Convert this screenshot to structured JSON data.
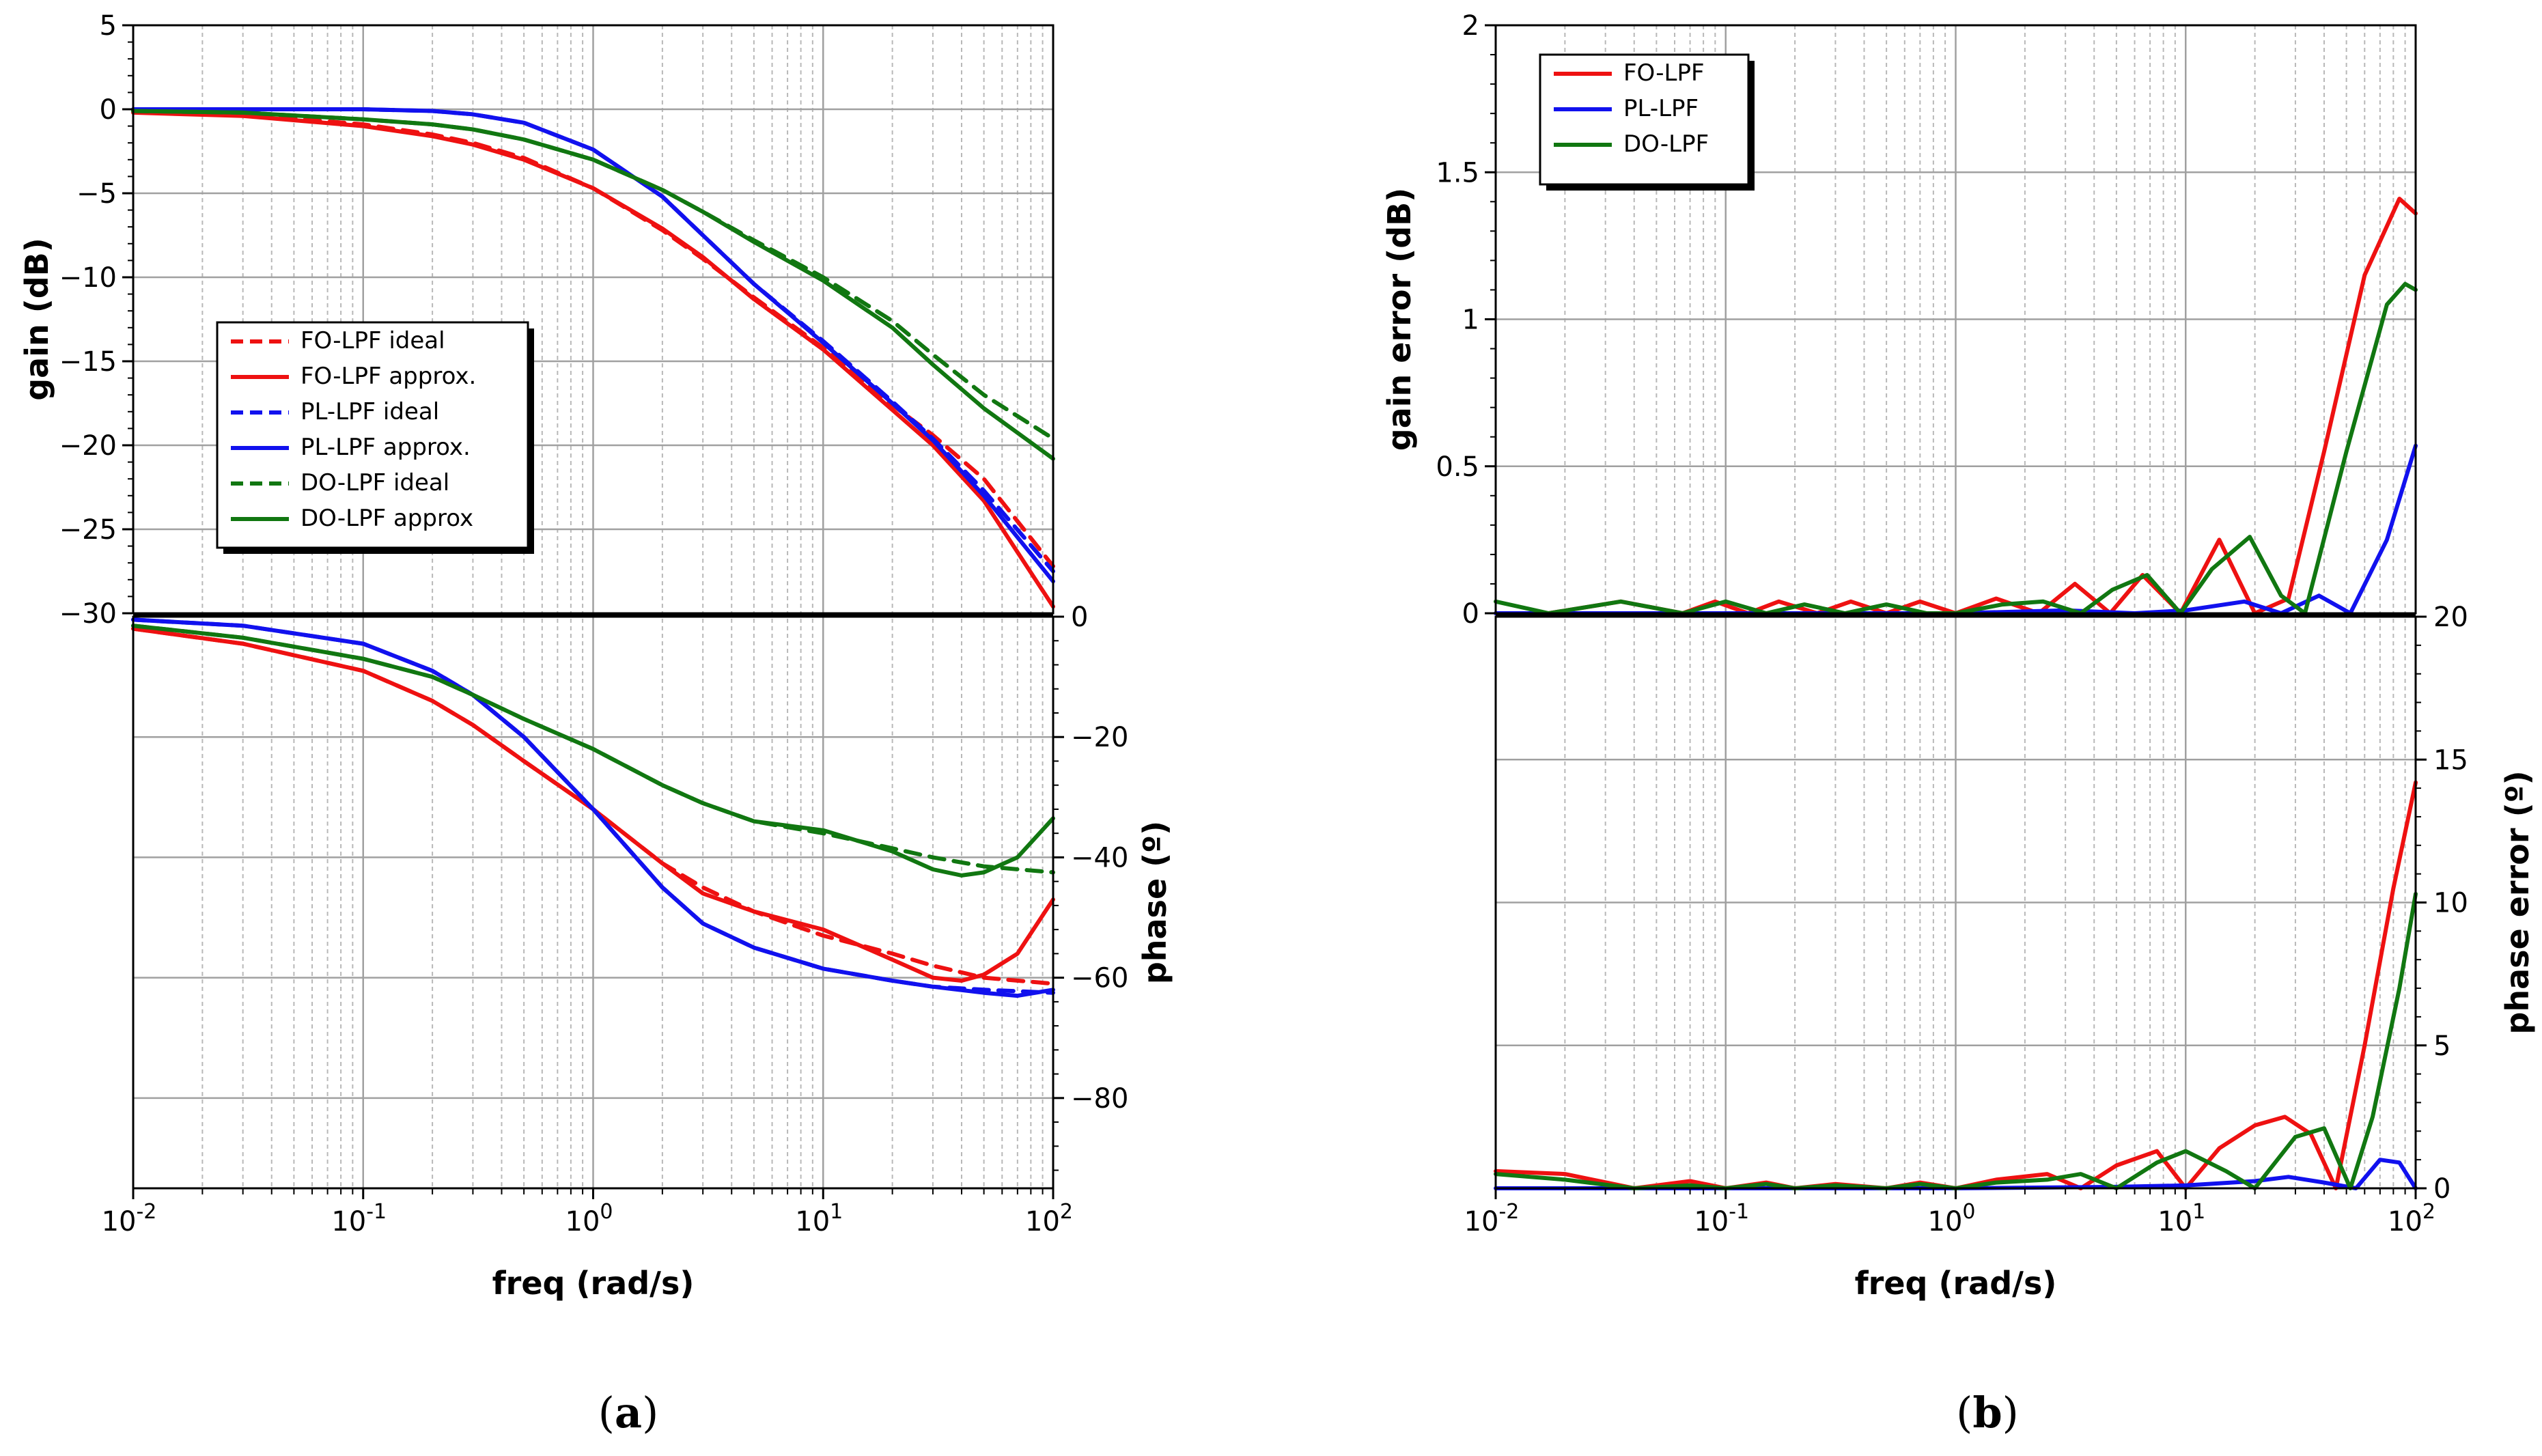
{
  "chart_data": [
    {
      "id": "a",
      "type": "line",
      "caption_letter": "a",
      "xlabel": "freq (rad/s)",
      "x_scale": "log",
      "xlim": [
        0.01,
        100
      ],
      "x_tick_exponents": [
        "-2",
        "-1",
        "0",
        "1",
        "2"
      ],
      "x_tick_base": "10",
      "gain_ylabel": "gain (dB)",
      "gain_ylim": [
        -30,
        5
      ],
      "gain_ticks": [
        "5",
        "0",
        "−5",
        "−10",
        "−15",
        "−20",
        "−25",
        "−30"
      ],
      "gain_tick_values": [
        5,
        0,
        -5,
        -10,
        -15,
        -20,
        -25,
        -30
      ],
      "phase_ylabel": "phase (º)",
      "phase_ylim": [
        -95,
        0
      ],
      "phase_ticks": [
        "0",
        "−20",
        "−40",
        "−60",
        "−80"
      ],
      "phase_tick_values": [
        0,
        -20,
        -40,
        -60,
        -80
      ],
      "legend_position": "middle-left of gain panel",
      "legend": [
        {
          "label": "FO-LPF ideal",
          "color": "#ee1111",
          "dash": true
        },
        {
          "label": "FO-LPF approx.",
          "color": "#ee1111",
          "dash": false
        },
        {
          "label": "PL-LPF ideal",
          "color": "#1111ee",
          "dash": true
        },
        {
          "label": "PL-LPF approx.",
          "color": "#1111ee",
          "dash": false
        },
        {
          "label": "DO-LPF ideal",
          "color": "#117711",
          "dash": true
        },
        {
          "label": "DO-LPF approx",
          "color": "#117711",
          "dash": false
        }
      ],
      "gain_series": [
        {
          "name": "FO-LPF ideal",
          "color": "#ee1111",
          "dash": true,
          "x": [
            0.01,
            0.03,
            0.1,
            0.2,
            0.3,
            0.5,
            1,
            2,
            3,
            5,
            10,
            20,
            30,
            50,
            100
          ],
          "y": [
            -0.1,
            -0.3,
            -0.9,
            -1.5,
            -2.0,
            -2.9,
            -4.7,
            -7.2,
            -8.9,
            -11.2,
            -14.2,
            -17.6,
            -19.4,
            -22.0,
            -27.2
          ]
        },
        {
          "name": "FO-LPF approx.",
          "color": "#ee1111",
          "dash": false,
          "x": [
            0.01,
            0.03,
            0.1,
            0.2,
            0.3,
            0.5,
            1,
            2,
            3,
            5,
            10,
            20,
            30,
            50,
            100
          ],
          "y": [
            -0.2,
            -0.4,
            -1.0,
            -1.6,
            -2.1,
            -3.0,
            -4.7,
            -7.1,
            -8.8,
            -11.3,
            -14.3,
            -17.9,
            -20.0,
            -23.3,
            -29.6
          ]
        },
        {
          "name": "PL-LPF ideal",
          "color": "#1111ee",
          "dash": true,
          "x": [
            0.01,
            0.03,
            0.1,
            0.2,
            0.3,
            0.5,
            1,
            2,
            3,
            5,
            10,
            20,
            30,
            50,
            100
          ],
          "y": [
            0.0,
            0.0,
            0.0,
            -0.1,
            -0.3,
            -0.8,
            -2.4,
            -5.2,
            -7.5,
            -10.4,
            -13.8,
            -17.4,
            -19.6,
            -22.7,
            -27.5
          ]
        },
        {
          "name": "PL-LPF approx.",
          "color": "#1111ee",
          "dash": false,
          "x": [
            0.01,
            0.03,
            0.1,
            0.2,
            0.3,
            0.5,
            1,
            2,
            3,
            5,
            10,
            20,
            30,
            50,
            100
          ],
          "y": [
            0.0,
            0.0,
            0.0,
            -0.1,
            -0.3,
            -0.8,
            -2.4,
            -5.2,
            -7.5,
            -10.4,
            -13.9,
            -17.5,
            -19.7,
            -23.0,
            -28.1
          ]
        },
        {
          "name": "DO-LPF ideal",
          "color": "#117711",
          "dash": true,
          "x": [
            0.01,
            0.03,
            0.1,
            0.2,
            0.3,
            0.5,
            1,
            2,
            3,
            5,
            10,
            20,
            30,
            50,
            100
          ],
          "y": [
            -0.1,
            -0.2,
            -0.6,
            -0.9,
            -1.2,
            -1.8,
            -3.0,
            -4.8,
            -6.1,
            -7.8,
            -10.0,
            -12.6,
            -14.6,
            -17.0,
            -19.6
          ]
        },
        {
          "name": "DO-LPF approx",
          "color": "#117711",
          "dash": false,
          "x": [
            0.01,
            0.03,
            0.1,
            0.2,
            0.3,
            0.5,
            1,
            2,
            3,
            5,
            10,
            20,
            30,
            50,
            100
          ],
          "y": [
            -0.1,
            -0.2,
            -0.6,
            -0.9,
            -1.2,
            -1.8,
            -3.0,
            -4.8,
            -6.1,
            -7.9,
            -10.2,
            -13.0,
            -15.2,
            -17.8,
            -20.8
          ]
        }
      ],
      "phase_series": [
        {
          "name": "FO-LPF ideal",
          "color": "#ee1111",
          "dash": true,
          "x": [
            0.01,
            0.03,
            0.1,
            0.2,
            0.3,
            0.5,
            1,
            2,
            3,
            5,
            10,
            20,
            30,
            50,
            100
          ],
          "y": [
            -2,
            -4.5,
            -9,
            -14,
            -18,
            -24,
            -32,
            -41,
            -45,
            -49,
            -53,
            -56,
            -58,
            -60,
            -61
          ]
        },
        {
          "name": "FO-LPF approx.",
          "color": "#ee1111",
          "dash": false,
          "x": [
            0.01,
            0.03,
            0.1,
            0.2,
            0.3,
            0.5,
            1,
            2,
            3,
            5,
            10,
            20,
            30,
            40,
            50,
            70,
            100
          ],
          "y": [
            -2,
            -4.5,
            -9,
            -14,
            -18,
            -24,
            -32,
            -41,
            -46,
            -49,
            -52,
            -57,
            -60,
            -60.5,
            -59.5,
            -56,
            -47
          ]
        },
        {
          "name": "PL-LPF ideal",
          "color": "#1111ee",
          "dash": true,
          "x": [
            0.01,
            0.03,
            0.1,
            0.2,
            0.3,
            0.5,
            1,
            2,
            3,
            5,
            10,
            20,
            30,
            50,
            100
          ],
          "y": [
            -0.5,
            -1.5,
            -4.5,
            -9,
            -13,
            -20,
            -32,
            -45,
            -51,
            -55,
            -58.5,
            -60.5,
            -61.5,
            -62,
            -62.5
          ]
        },
        {
          "name": "PL-LPF approx.",
          "color": "#1111ee",
          "dash": false,
          "x": [
            0.01,
            0.03,
            0.1,
            0.2,
            0.3,
            0.5,
            1,
            2,
            3,
            5,
            10,
            20,
            30,
            50,
            70,
            100
          ],
          "y": [
            -0.5,
            -1.5,
            -4.5,
            -9,
            -13,
            -20,
            -32,
            -45,
            -51,
            -55,
            -58.5,
            -60.5,
            -61.5,
            -62.5,
            -63,
            -62
          ]
        },
        {
          "name": "DO-LPF ideal",
          "color": "#117711",
          "dash": true,
          "x": [
            0.01,
            0.03,
            0.1,
            0.2,
            0.3,
            0.5,
            1,
            2,
            3,
            5,
            10,
            20,
            30,
            50,
            100
          ],
          "y": [
            -1.5,
            -3.5,
            -7,
            -10,
            -13,
            -17,
            -22,
            -28,
            -31,
            -34,
            -36,
            -38.5,
            -40,
            -41.5,
            -42.5
          ]
        },
        {
          "name": "DO-LPF approx",
          "color": "#117711",
          "dash": false,
          "x": [
            0.01,
            0.03,
            0.1,
            0.2,
            0.3,
            0.5,
            1,
            2,
            3,
            5,
            10,
            20,
            30,
            40,
            50,
            70,
            100
          ],
          "y": [
            -1.5,
            -3.5,
            -7,
            -10,
            -13,
            -17,
            -22,
            -28,
            -31,
            -34,
            -35.5,
            -39,
            -42,
            -43,
            -42.5,
            -40,
            -33.5
          ]
        }
      ]
    },
    {
      "id": "b",
      "type": "line",
      "caption_letter": "b",
      "xlabel": "freq (rad/s)",
      "x_scale": "log",
      "xlim": [
        0.01,
        100
      ],
      "x_tick_exponents": [
        "-2",
        "-1",
        "0",
        "1",
        "2"
      ],
      "x_tick_base": "10",
      "gain_ylabel": "gain error (dB)",
      "gain_ylim": [
        0,
        2
      ],
      "gain_ticks": [
        "2",
        "1.5",
        "1",
        "0.5",
        "0"
      ],
      "gain_tick_values": [
        2,
        1.5,
        1,
        0.5,
        0
      ],
      "phase_ylabel": "phase error (º)",
      "phase_ylim": [
        0,
        20
      ],
      "phase_ticks": [
        "20",
        "15",
        "10",
        "5",
        "0"
      ],
      "phase_tick_values": [
        20,
        15,
        10,
        5,
        0
      ],
      "legend_position": "top-left",
      "legend": [
        {
          "label": "FO-LPF",
          "color": "#ee1111",
          "dash": false
        },
        {
          "label": "PL-LPF",
          "color": "#1111ee",
          "dash": false
        },
        {
          "label": "DO-LPF",
          "color": "#117711",
          "dash": false
        }
      ],
      "gain_series": [
        {
          "name": "FO-LPF",
          "color": "#ee1111",
          "x": [
            0.01,
            0.017,
            0.035,
            0.065,
            0.09,
            0.125,
            0.17,
            0.25,
            0.35,
            0.5,
            0.7,
            1.0,
            1.5,
            2.3,
            3.3,
            4.7,
            6.5,
            9.5,
            14,
            20,
            28,
            40,
            60,
            85,
            100
          ],
          "y": [
            0.0,
            0.0,
            0.04,
            0.0,
            0.04,
            0.0,
            0.04,
            0.0,
            0.04,
            0.0,
            0.04,
            0.0,
            0.05,
            0.0,
            0.1,
            0.0,
            0.13,
            0.0,
            0.25,
            0.0,
            0.05,
            0.55,
            1.15,
            1.41,
            1.36
          ]
        },
        {
          "name": "PL-LPF",
          "color": "#1111ee",
          "x": [
            0.01,
            0.1,
            1,
            3,
            6,
            10,
            18,
            26,
            38,
            52,
            75,
            100
          ],
          "y": [
            0.0,
            0.0,
            0.0,
            0.01,
            0.0,
            0.01,
            0.04,
            0.0,
            0.06,
            0.0,
            0.25,
            0.57
          ]
        },
        {
          "name": "DO-LPF",
          "color": "#117711",
          "x": [
            0.01,
            0.017,
            0.035,
            0.065,
            0.1,
            0.15,
            0.22,
            0.33,
            0.5,
            0.75,
            1.0,
            1.6,
            2.4,
            3.5,
            4.8,
            6.8,
            9.5,
            13,
            19,
            26,
            33,
            50,
            75,
            90,
            100
          ],
          "y": [
            0.04,
            0.0,
            0.04,
            0.0,
            0.04,
            0.0,
            0.03,
            0.0,
            0.03,
            0.0,
            0.0,
            0.03,
            0.04,
            0.0,
            0.08,
            0.13,
            0.0,
            0.15,
            0.26,
            0.06,
            0.0,
            0.55,
            1.05,
            1.12,
            1.1
          ]
        }
      ],
      "phase_series": [
        {
          "name": "FO-LPF",
          "color": "#ee1111",
          "x": [
            0.01,
            0.02,
            0.04,
            0.07,
            0.1,
            0.15,
            0.2,
            0.3,
            0.5,
            0.7,
            1.0,
            1.5,
            2.5,
            3.5,
            5,
            7.5,
            10,
            14,
            20,
            27,
            35,
            45,
            60,
            80,
            100
          ],
          "y": [
            0.6,
            0.5,
            0.0,
            0.25,
            0.0,
            0.2,
            0.0,
            0.15,
            0.0,
            0.2,
            0.0,
            0.3,
            0.5,
            0.0,
            0.8,
            1.3,
            0.0,
            1.4,
            2.2,
            2.5,
            1.9,
            0.0,
            5.0,
            10.5,
            14.2
          ]
        },
        {
          "name": "PL-LPF",
          "color": "#1111ee",
          "x": [
            0.01,
            0.1,
            1,
            5,
            10,
            20,
            28,
            40,
            55,
            70,
            85,
            100
          ],
          "y": [
            0.0,
            0.0,
            0.0,
            0.05,
            0.1,
            0.25,
            0.4,
            0.2,
            0.0,
            1.0,
            0.9,
            0.0
          ]
        },
        {
          "name": "DO-LPF",
          "color": "#117711",
          "x": [
            0.01,
            0.02,
            0.04,
            0.07,
            0.1,
            0.15,
            0.2,
            0.3,
            0.5,
            0.7,
            1.0,
            1.5,
            2.5,
            3.5,
            5,
            7.5,
            10,
            15,
            20,
            30,
            40,
            52,
            65,
            85,
            100
          ],
          "y": [
            0.5,
            0.3,
            0.0,
            0.1,
            0.0,
            0.15,
            0.0,
            0.1,
            0.0,
            0.15,
            0.0,
            0.2,
            0.3,
            0.5,
            0.0,
            0.9,
            1.3,
            0.6,
            0.0,
            1.8,
            2.1,
            0.0,
            2.5,
            7.0,
            10.3
          ]
        }
      ]
    }
  ]
}
